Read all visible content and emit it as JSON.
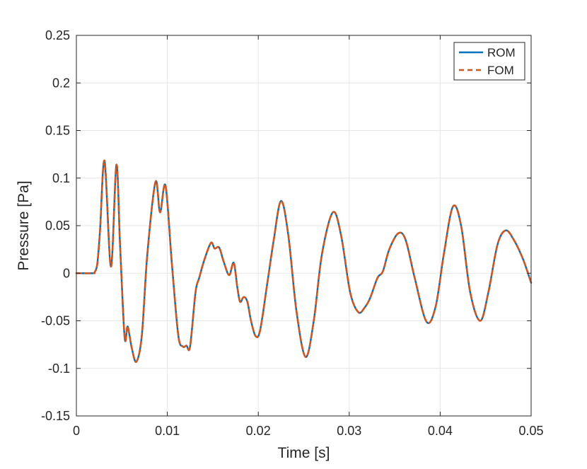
{
  "chart_data": {
    "type": "line",
    "xlabel": "Time [s]",
    "ylabel": "Pressure [Pa]",
    "xlim": [
      0,
      0.05
    ],
    "ylim": [
      -0.15,
      0.25
    ],
    "xticks": [
      0,
      0.01,
      0.02,
      0.03,
      0.04,
      0.05
    ],
    "xtick_labels": [
      "0",
      "0.01",
      "0.02",
      "0.03",
      "0.04",
      "0.05"
    ],
    "yticks": [
      -0.15,
      -0.1,
      -0.05,
      0,
      0.05,
      0.1,
      0.15,
      0.2,
      0.25
    ],
    "ytick_labels": [
      "-0.15",
      "-0.1",
      "-0.05",
      "0",
      "0.05",
      "0.1",
      "0.15",
      "0.2",
      "0.25"
    ],
    "grid": true,
    "legend_position": "top-right",
    "x": [
      0,
      0.0018,
      0.002,
      0.0023,
      0.0026,
      0.0031,
      0.0038,
      0.0044,
      0.0048,
      0.0053,
      0.0056,
      0.0058,
      0.0061,
      0.0066,
      0.0072,
      0.0078,
      0.0087,
      0.0092,
      0.0098,
      0.0105,
      0.0112,
      0.0117,
      0.0121,
      0.0125,
      0.0131,
      0.0135,
      0.0141,
      0.0148,
      0.0152,
      0.0157,
      0.0162,
      0.0168,
      0.0173,
      0.0177,
      0.018,
      0.0184,
      0.0188,
      0.0192,
      0.0197,
      0.0202,
      0.021,
      0.0217,
      0.0225,
      0.0233,
      0.0242,
      0.0252,
      0.0261,
      0.027,
      0.0282,
      0.0291,
      0.0301,
      0.031,
      0.0317,
      0.0323,
      0.0331,
      0.0337,
      0.0344,
      0.0354,
      0.0362,
      0.0372,
      0.0385,
      0.0395,
      0.0404,
      0.0414,
      0.0423,
      0.0433,
      0.0444,
      0.0453,
      0.0463,
      0.0472,
      0.0481,
      0.0491,
      0.05
    ],
    "series": [
      {
        "name": "ROM",
        "color": "#0072BD",
        "style": "solid",
        "values": [
          0,
          0,
          0.001,
          0.01,
          0.045,
          0.118,
          0.007,
          0.114,
          0.03,
          -0.067,
          -0.056,
          -0.063,
          -0.079,
          -0.093,
          -0.065,
          0.02,
          0.096,
          0.064,
          0.092,
          0.01,
          -0.065,
          -0.077,
          -0.076,
          -0.077,
          -0.02,
          -0.005,
          0.015,
          0.032,
          0.026,
          0.027,
          0.012,
          -0.002,
          0.011,
          -0.015,
          -0.03,
          -0.025,
          -0.03,
          -0.05,
          -0.066,
          -0.06,
          -0.01,
          0.035,
          0.076,
          0.04,
          -0.04,
          -0.088,
          -0.05,
          0.02,
          0.064,
          0.04,
          -0.02,
          -0.041,
          -0.036,
          -0.026,
          -0.005,
          0.002,
          0.025,
          0.042,
          0.035,
          -0.005,
          -0.051,
          -0.035,
          0.02,
          0.07,
          0.05,
          -0.02,
          -0.05,
          -0.02,
          0.03,
          0.045,
          0.035,
          0.015,
          -0.01
        ]
      },
      {
        "name": "FOM",
        "color": "#D95319",
        "style": "dashed",
        "values": [
          0,
          0,
          0.001,
          0.01,
          0.045,
          0.118,
          0.007,
          0.114,
          0.03,
          -0.067,
          -0.056,
          -0.063,
          -0.079,
          -0.093,
          -0.065,
          0.02,
          0.096,
          0.064,
          0.092,
          0.01,
          -0.065,
          -0.077,
          -0.076,
          -0.077,
          -0.02,
          -0.005,
          0.015,
          0.032,
          0.026,
          0.027,
          0.012,
          -0.002,
          0.011,
          -0.015,
          -0.03,
          -0.025,
          -0.03,
          -0.05,
          -0.066,
          -0.06,
          -0.01,
          0.035,
          0.076,
          0.04,
          -0.04,
          -0.088,
          -0.05,
          0.02,
          0.064,
          0.04,
          -0.02,
          -0.041,
          -0.036,
          -0.026,
          -0.005,
          0.002,
          0.025,
          0.042,
          0.035,
          -0.005,
          -0.051,
          -0.035,
          0.02,
          0.07,
          0.05,
          -0.02,
          -0.05,
          -0.02,
          0.03,
          0.045,
          0.035,
          0.015,
          -0.01
        ]
      }
    ]
  }
}
